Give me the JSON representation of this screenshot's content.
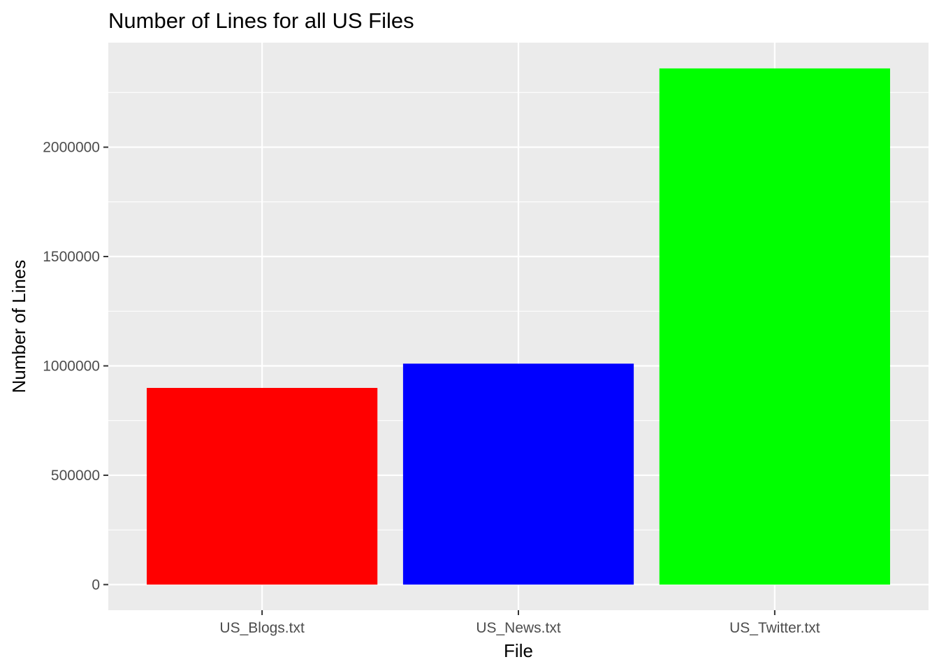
{
  "chart_data": {
    "type": "bar",
    "title": "Number of Lines for all US Files",
    "xlabel": "File",
    "ylabel": "Number of Lines",
    "categories": [
      "US_Blogs.txt",
      "US_News.txt",
      "US_Twitter.txt"
    ],
    "values": [
      899288,
      1010242,
      2360148
    ],
    "colors": [
      "#ff0000",
      "#0000ff",
      "#00ff00"
    ],
    "ylim": [
      -117000,
      2478000
    ],
    "yticks": [
      0,
      500000,
      1000000,
      1500000,
      2000000
    ],
    "ytick_labels": [
      "0",
      "500000",
      "1000000",
      "1500000",
      "2000000"
    ],
    "panel_background": "#ebebeb",
    "grid_color": "#ffffff",
    "grid": true,
    "legend": "none"
  }
}
